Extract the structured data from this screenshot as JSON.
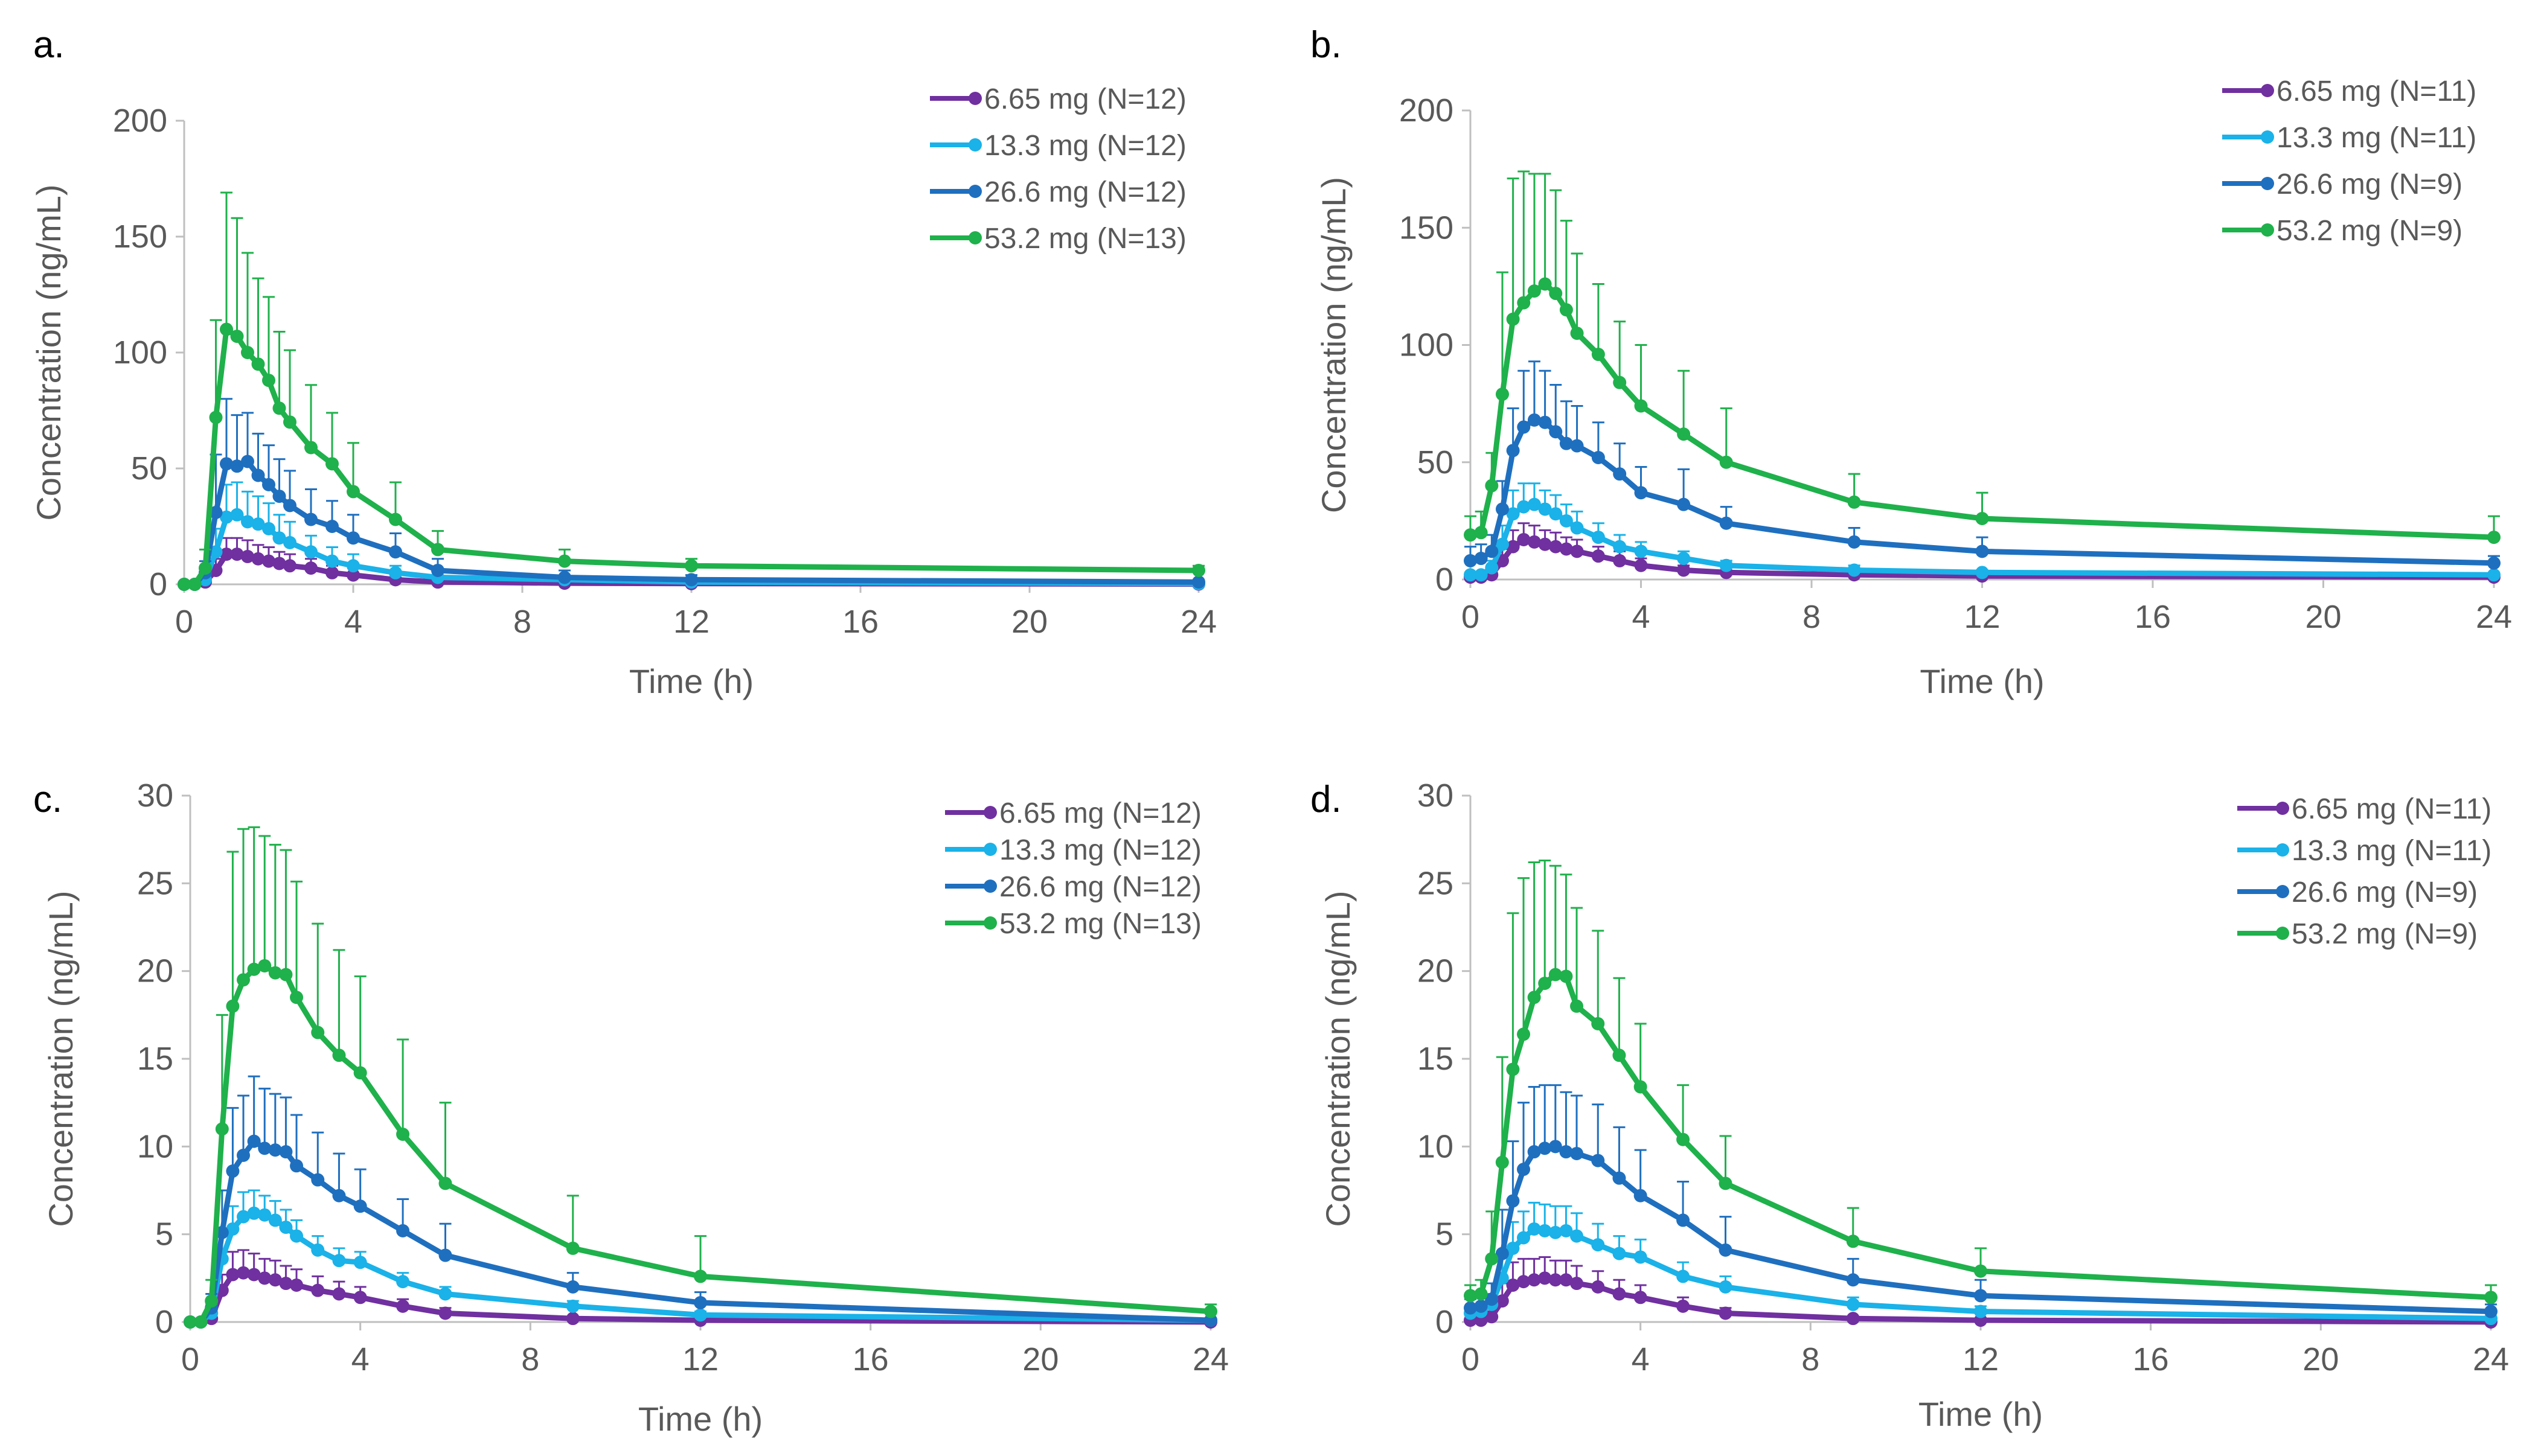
{
  "chart_data": [
    {
      "panel": "a.",
      "type": "line",
      "xlabel": "Time (h)",
      "ylabel": "Concentration (ng/mL)",
      "xlim": [
        0,
        24
      ],
      "ylim": [
        0,
        200
      ],
      "xticks": [
        "0",
        "4",
        "8",
        "12",
        "16",
        "20",
        "24"
      ],
      "yticks": [
        "0",
        "50",
        "100",
        "150",
        "200"
      ],
      "grid": false,
      "legend_position": "top-right",
      "x": [
        0,
        0.25,
        0.5,
        0.75,
        1,
        1.25,
        1.5,
        1.75,
        2,
        2.25,
        2.5,
        3,
        3.5,
        4,
        5,
        6,
        9,
        12,
        24
      ],
      "series": [
        {
          "name": "6.65 mg (N=12)",
          "color": "#7030a0",
          "values": [
            0,
            0,
            1,
            6,
            13,
            13,
            12,
            11,
            10,
            9,
            8,
            7,
            5,
            4,
            2,
            1,
            0.5,
            0.3,
            0.1
          ],
          "errors": [
            0,
            0,
            1,
            5,
            7,
            7,
            7,
            6,
            6,
            5,
            5,
            4,
            3,
            3,
            2,
            1,
            0.5,
            0.3,
            0.1
          ]
        },
        {
          "name": "13.3 mg (N=12)",
          "color": "#1ab2e8",
          "values": [
            0,
            0,
            2,
            14,
            29,
            30,
            27,
            26,
            24,
            20,
            18,
            14,
            10,
            8,
            5,
            3,
            2,
            1,
            0.3
          ],
          "errors": [
            0,
            0,
            2,
            10,
            14,
            14,
            13,
            12,
            11,
            10,
            9,
            7,
            6,
            5,
            3,
            2,
            1,
            0.5,
            0.2
          ]
        },
        {
          "name": "26.6 mg (N=12)",
          "color": "#1f6fbf",
          "values": [
            0,
            0,
            5,
            31,
            52,
            51,
            53,
            47,
            43,
            38,
            34,
            28,
            25,
            20,
            14,
            6,
            3,
            2,
            1
          ],
          "errors": [
            0,
            0,
            5,
            25,
            28,
            22,
            21,
            18,
            17,
            16,
            15,
            13,
            11,
            10,
            8,
            5,
            3,
            2,
            1
          ]
        },
        {
          "name": "53.2 mg (N=13)",
          "color": "#1fb14b",
          "values": [
            0,
            0,
            7,
            72,
            110,
            107,
            100,
            95,
            88,
            76,
            70,
            59,
            52,
            40,
            28,
            15,
            10,
            8,
            6
          ],
          "errors": [
            0,
            0,
            8,
            42,
            59,
            51,
            43,
            37,
            36,
            33,
            31,
            27,
            22,
            21,
            16,
            8,
            5,
            3,
            2
          ]
        }
      ]
    },
    {
      "panel": "b.",
      "type": "line",
      "xlabel": "Time (h)",
      "ylabel": "Concentration (ng/mL)",
      "xlim": [
        0,
        24
      ],
      "ylim": [
        0,
        200
      ],
      "xticks": [
        "0",
        "4",
        "8",
        "12",
        "16",
        "20",
        "24"
      ],
      "yticks": [
        "0",
        "50",
        "100",
        "150",
        "200"
      ],
      "grid": false,
      "legend_position": "top-right",
      "x": [
        0,
        0.25,
        0.5,
        0.75,
        1,
        1.25,
        1.5,
        1.75,
        2,
        2.25,
        2.5,
        3,
        3.5,
        4,
        5,
        6,
        9,
        12,
        24
      ],
      "series": [
        {
          "name": "6.65 mg (N=11)",
          "color": "#7030a0",
          "values": [
            1,
            1,
            2,
            8,
            14,
            17,
            16,
            15,
            14,
            13,
            12,
            10,
            8,
            6,
            4,
            3,
            2,
            1.5,
            1
          ],
          "errors": [
            1,
            1,
            2,
            5,
            7,
            7,
            7,
            6,
            6,
            5,
            5,
            4,
            4,
            3,
            2,
            2,
            1,
            1,
            0.5
          ]
        },
        {
          "name": "13.3 mg (N=11)",
          "color": "#1ab2e8",
          "values": [
            2,
            2,
            5,
            15,
            28,
            31,
            32,
            30,
            28,
            25,
            22,
            18,
            14,
            12,
            9,
            6,
            4,
            3,
            2
          ],
          "errors": [
            1,
            1,
            3,
            8,
            10,
            10,
            9,
            8,
            8,
            7,
            7,
            6,
            5,
            4,
            3,
            2,
            2,
            1,
            1
          ]
        },
        {
          "name": "26.6 mg (N=9)",
          "color": "#1f6fbf",
          "values": [
            8,
            9,
            12,
            30,
            55,
            65,
            68,
            67,
            63,
            58,
            57,
            52,
            45,
            37,
            32,
            24,
            16,
            12,
            7
          ],
          "errors": [
            6,
            6,
            7,
            12,
            18,
            24,
            25,
            22,
            20,
            18,
            17,
            15,
            13,
            11,
            15,
            7,
            6,
            6,
            3
          ]
        },
        {
          "name": "53.2 mg (N=9)",
          "color": "#1fb14b",
          "values": [
            19,
            20,
            40,
            79,
            111,
            118,
            123,
            126,
            122,
            115,
            105,
            96,
            84,
            74,
            62,
            50,
            33,
            26,
            18
          ],
          "errors": [
            8,
            9,
            14,
            52,
            60,
            56,
            50,
            47,
            44,
            38,
            34,
            30,
            26,
            26,
            27,
            23,
            12,
            11,
            9
          ]
        }
      ]
    },
    {
      "panel": "c.",
      "type": "line",
      "xlabel": "Time (h)",
      "ylabel": "Concentration (ng/mL)",
      "xlim": [
        0,
        24
      ],
      "ylim": [
        0,
        30
      ],
      "xticks": [
        "0",
        "4",
        "8",
        "12",
        "16",
        "20",
        "24"
      ],
      "yticks": [
        "0",
        "5",
        "10",
        "15",
        "20",
        "25",
        "30"
      ],
      "grid": false,
      "legend_position": "top-right",
      "x": [
        0,
        0.25,
        0.5,
        0.75,
        1,
        1.25,
        1.5,
        1.75,
        2,
        2.25,
        2.5,
        3,
        3.5,
        4,
        5,
        6,
        9,
        12,
        24
      ],
      "series": [
        {
          "name": "6.65 mg (N=12)",
          "color": "#7030a0",
          "values": [
            0,
            0,
            0.2,
            1.8,
            2.7,
            2.8,
            2.7,
            2.5,
            2.4,
            2.2,
            2.1,
            1.8,
            1.6,
            1.4,
            0.9,
            0.5,
            0.2,
            0.1,
            0
          ],
          "errors": [
            0,
            0,
            0.2,
            0.9,
            1.3,
            1.3,
            1.2,
            1.1,
            1.1,
            1.0,
            0.9,
            0.8,
            0.7,
            0.6,
            0.4,
            0.3,
            0.1,
            0.1,
            0
          ]
        },
        {
          "name": "13.3 mg (N=12)",
          "color": "#1ab2e8",
          "values": [
            0,
            0,
            0.5,
            3.6,
            5.3,
            6.0,
            6.2,
            6.1,
            5.8,
            5.4,
            4.9,
            4.1,
            3.5,
            3.4,
            2.3,
            1.6,
            0.9,
            0.4,
            0.1
          ],
          "errors": [
            0,
            0,
            0.5,
            1.3,
            1.3,
            1.4,
            1.3,
            1.1,
            1.1,
            1.0,
            0.9,
            0.8,
            0.7,
            0.6,
            0.5,
            0.4,
            0.3,
            0.2,
            0.1
          ]
        },
        {
          "name": "26.6 mg (N=12)",
          "color": "#1f6fbf",
          "values": [
            0,
            0,
            0.8,
            5.1,
            8.6,
            9.5,
            10.3,
            9.9,
            9.8,
            9.7,
            8.9,
            8.1,
            7.2,
            6.6,
            5.2,
            3.8,
            2.0,
            1.1,
            0.1
          ],
          "errors": [
            0,
            0,
            0.8,
            2.4,
            3.6,
            3.4,
            3.7,
            3.4,
            3.2,
            3.1,
            2.9,
            2.7,
            2.4,
            2.1,
            1.8,
            1.8,
            0.8,
            0.6,
            0.1
          ]
        },
        {
          "name": "53.2 mg (N=13)",
          "color": "#1fb14b",
          "values": [
            0,
            0,
            1.2,
            11.0,
            18.0,
            19.5,
            20.1,
            20.3,
            19.9,
            19.8,
            18.5,
            16.5,
            15.2,
            14.2,
            10.7,
            7.9,
            4.2,
            2.6,
            0.6
          ],
          "errors": [
            0,
            0,
            1.2,
            6.5,
            8.8,
            8.6,
            8.1,
            7.4,
            7.3,
            7.1,
            6.6,
            6.2,
            6.0,
            5.5,
            5.4,
            4.6,
            3.0,
            2.3,
            0.4
          ]
        }
      ]
    },
    {
      "panel": "d.",
      "type": "line",
      "xlabel": "Time (h)",
      "ylabel": "Concentration (ng/mL)",
      "xlim": [
        0,
        24
      ],
      "ylim": [
        0,
        30
      ],
      "xticks": [
        "0",
        "4",
        "8",
        "12",
        "16",
        "20",
        "24"
      ],
      "yticks": [
        "0",
        "5",
        "10",
        "15",
        "20",
        "25",
        "30"
      ],
      "grid": false,
      "legend_position": "top-right",
      "x": [
        0,
        0.25,
        0.5,
        0.75,
        1,
        1.25,
        1.5,
        1.75,
        2,
        2.25,
        2.5,
        3,
        3.5,
        4,
        5,
        6,
        9,
        12,
        24
      ],
      "series": [
        {
          "name": "6.65 mg (N=11)",
          "color": "#7030a0",
          "values": [
            0.1,
            0.1,
            0.3,
            1.2,
            2.1,
            2.3,
            2.4,
            2.5,
            2.4,
            2.4,
            2.2,
            2.0,
            1.6,
            1.4,
            0.9,
            0.5,
            0.2,
            0.1,
            0
          ],
          "errors": [
            0.1,
            0.1,
            0.3,
            1.0,
            1.3,
            1.3,
            1.2,
            1.2,
            1.1,
            1.1,
            1.0,
            0.9,
            0.8,
            0.7,
            0.5,
            0.3,
            0.1,
            0.1,
            0
          ]
        },
        {
          "name": "13.3 mg (N=11)",
          "color": "#1ab2e8",
          "values": [
            0.5,
            0.6,
            1.0,
            2.5,
            4.2,
            4.8,
            5.3,
            5.2,
            5.1,
            5.2,
            4.9,
            4.4,
            3.9,
            3.7,
            2.6,
            2.0,
            1.0,
            0.6,
            0.2
          ],
          "errors": [
            0.3,
            0.3,
            0.6,
            1.4,
            1.5,
            1.5,
            1.5,
            1.5,
            1.5,
            1.4,
            1.3,
            1.2,
            1.0,
            1.0,
            0.8,
            0.6,
            0.4,
            0.3,
            0.1
          ]
        },
        {
          "name": "26.6 mg (N=9)",
          "color": "#1f6fbf",
          "values": [
            0.8,
            0.9,
            1.3,
            3.9,
            6.9,
            8.7,
            9.7,
            9.9,
            10.0,
            9.7,
            9.6,
            9.2,
            8.2,
            7.2,
            5.8,
            4.1,
            2.4,
            1.5,
            0.6
          ],
          "errors": [
            0.5,
            0.6,
            0.9,
            2.5,
            3.4,
            3.8,
            3.7,
            3.6,
            3.5,
            3.4,
            3.3,
            3.2,
            2.9,
            2.6,
            2.2,
            1.9,
            1.2,
            0.9,
            0.4
          ]
        },
        {
          "name": "53.2 mg (N=9)",
          "color": "#1fb14b",
          "values": [
            1.5,
            1.6,
            3.6,
            9.1,
            14.4,
            16.4,
            18.5,
            19.3,
            19.8,
            19.7,
            18.0,
            17.0,
            15.2,
            13.4,
            10.4,
            7.9,
            4.6,
            2.9,
            1.4
          ],
          "errors": [
            0.6,
            0.8,
            2.7,
            6.0,
            8.9,
            8.9,
            7.7,
            7.0,
            6.2,
            5.8,
            5.6,
            5.3,
            4.4,
            3.6,
            3.1,
            2.7,
            1.9,
            1.3,
            0.7
          ]
        }
      ]
    }
  ]
}
